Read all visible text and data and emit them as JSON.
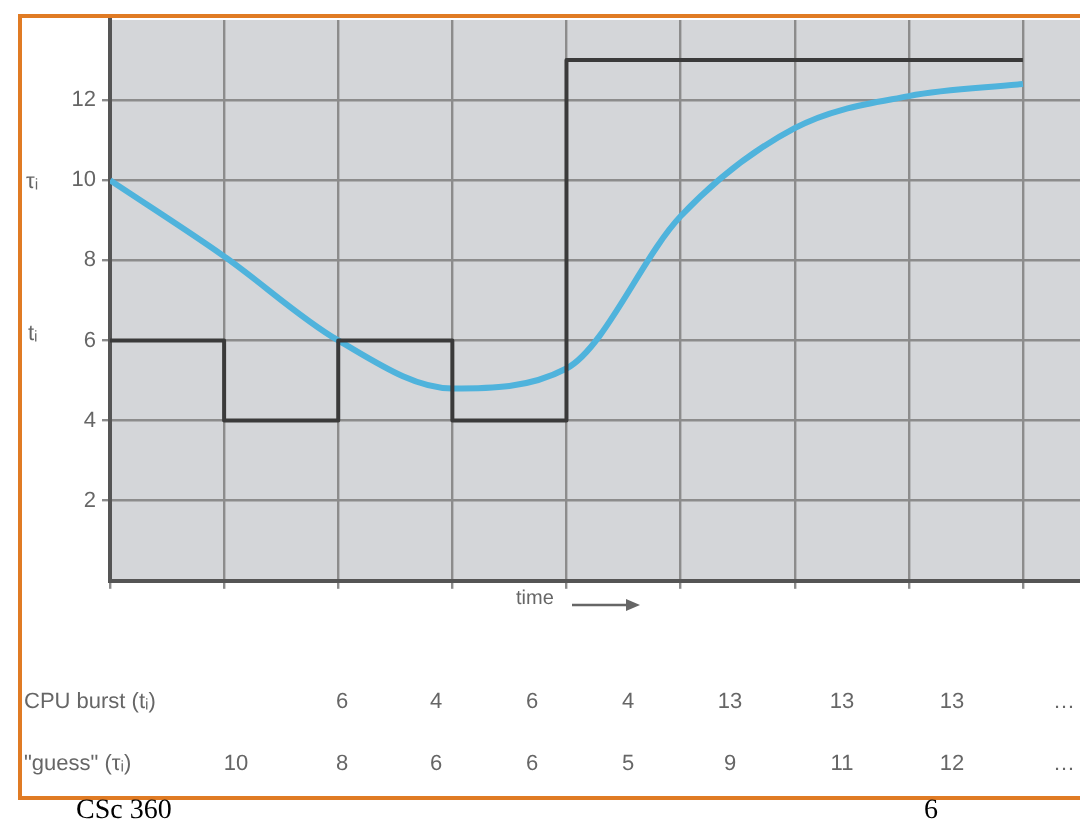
{
  "chart_data": {
    "type": "line",
    "xlabel": "time",
    "categories": [
      null,
      null,
      null,
      null,
      null,
      null,
      null,
      null,
      null
    ],
    "ylim": [
      0,
      14
    ],
    "yticks": [
      2,
      4,
      6,
      8,
      10,
      12
    ],
    "tick_labels": "y",
    "grid": true,
    "legend": false,
    "marker": "none",
    "series": [
      {
        "type": "step",
        "color": "#3a3a3a",
        "values": [
          6,
          6,
          4,
          6,
          4,
          13,
          13,
          13,
          13
        ]
      },
      {
        "type": "line",
        "color": "#4fb3dc",
        "values": [
          10,
          8.1,
          6,
          4.8,
          5.3,
          9.1,
          11.3,
          12.1,
          12.4
        ]
      }
    ],
    "annotations": [
      "CPU burst (tᵢ)",
      "6",
      "4",
      "6",
      "4",
      "13",
      "13",
      "13",
      "…",
      "\"guess\" (τᵢ)",
      "10",
      "8",
      "6",
      "6",
      "5",
      "9",
      "11",
      "12",
      "…",
      "CSc 360",
      "6",
      "τᵢ",
      "tᵢ"
    ]
  }
}
